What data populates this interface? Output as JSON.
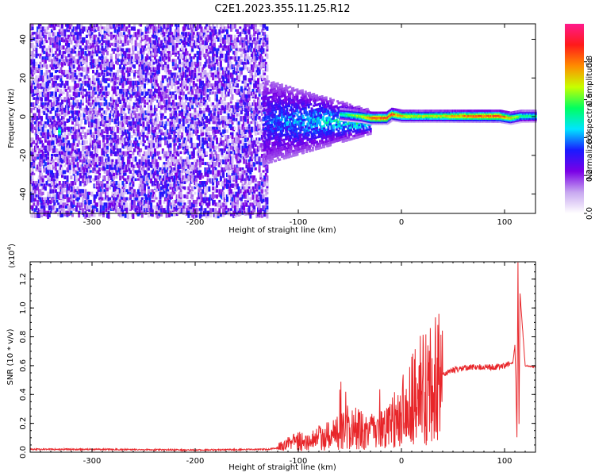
{
  "title": "C2E1.2023.355.11.25.R12",
  "chart_data": [
    {
      "type": "heatmap",
      "xlabel": "Height of straight line (km)",
      "ylabel": "Frequency (Hz)",
      "xlim": [
        -360,
        130
      ],
      "ylim": [
        -50,
        48
      ],
      "xticks": [
        -300,
        -200,
        -100,
        0,
        100
      ],
      "yticks": [
        -40,
        -20,
        0,
        20,
        40
      ],
      "colorbar": {
        "label": "Normalized spectral amplitude",
        "range": [
          0,
          1
        ],
        "ticks": [
          "0.0",
          "0.2",
          "0.4",
          "0.6",
          "0.8"
        ],
        "tick_values": [
          0.0,
          0.2,
          0.4,
          0.6,
          0.8
        ],
        "colormap": [
          "#ffffff",
          "#c8a8f0",
          "#7a00e6",
          "#1a1aff",
          "#00e5ff",
          "#00ff60",
          "#c8ff00",
          "#ff8c00",
          "#ff1a1a",
          "#ff1a8c"
        ]
      },
      "noise_region": {
        "x_range": [
          -360,
          -130
        ],
        "y_range": [
          -50,
          48
        ],
        "amplitude": [
          0.05,
          0.35
        ]
      },
      "transition_region": {
        "x_range": [
          -135,
          -30
        ],
        "y_center": -2,
        "y_halfwidth": [
          22,
          6
        ],
        "amplitude": [
          0.15,
          0.55
        ]
      },
      "signal_band": [
        {
          "x": -60,
          "freq": 2,
          "amplitude": 0.55
        },
        {
          "x": -40,
          "freq": 1,
          "amplitude": 0.7
        },
        {
          "x": -30,
          "freq": 0,
          "amplitude": 0.85
        },
        {
          "x": -15,
          "freq": 0,
          "amplitude": 0.9
        },
        {
          "x": -10,
          "freq": 2,
          "amplitude": 0.9
        },
        {
          "x": 0,
          "freq": 1,
          "amplitude": 0.75
        },
        {
          "x": 20,
          "freq": 1,
          "amplitude": 0.7
        },
        {
          "x": 40,
          "freq": 1,
          "amplitude": 0.75
        },
        {
          "x": 60,
          "freq": 1,
          "amplitude": 0.85
        },
        {
          "x": 95,
          "freq": 1,
          "amplitude": 0.9
        },
        {
          "x": 105,
          "freq": 0,
          "amplitude": 0.75
        },
        {
          "x": 115,
          "freq": 1,
          "amplitude": 0.6
        },
        {
          "x": 130,
          "freq": 1,
          "amplitude": 0.55
        }
      ],
      "signal_halfwidth_hz": 3,
      "noise_spot": {
        "x": -333,
        "freq": -7,
        "amplitude": 0.55
      }
    },
    {
      "type": "line",
      "xlabel": "Height of straight line (km)",
      "ylabel": "SNR (10 * v/v)",
      "yscale_label": "(x10",
      "yscale_exp": "4",
      "yscale_close": ")",
      "xlim": [
        -360,
        130
      ],
      "ylim": [
        0,
        1.32
      ],
      "xticks": [
        -300,
        -200,
        -100,
        0,
        100
      ],
      "yticks": [
        "0.0",
        "0.2",
        "0.4",
        "0.6",
        "0.8",
        "1.0",
        "1.2"
      ],
      "ytick_values": [
        0,
        0.2,
        0.4,
        0.6,
        0.8,
        1.0,
        1.2
      ],
      "line_color": "#e8262a",
      "series": [
        {
          "x": [
            -360,
            -300,
            -200,
            -130,
            -120,
            -110,
            -100,
            -90,
            -80,
            -70,
            -60,
            -50,
            -40,
            -30,
            -20,
            -10,
            0,
            10,
            20,
            30,
            40,
            50,
            60,
            70,
            80,
            90,
            100,
            108,
            110,
            111,
            112,
            113,
            114,
            115,
            120,
            130
          ],
          "y": [
            0.02,
            0.02,
            0.015,
            0.02,
            0.03,
            0.06,
            0.08,
            0.07,
            0.1,
            0.12,
            0.14,
            0.18,
            0.16,
            0.14,
            0.15,
            0.2,
            0.27,
            0.37,
            0.44,
            0.5,
            0.54,
            0.57,
            0.58,
            0.59,
            0.59,
            0.59,
            0.6,
            0.62,
            0.74,
            0.5,
            0.1,
            1.32,
            0.2,
            1.1,
            0.6,
            0.59
          ]
        }
      ]
    }
  ]
}
